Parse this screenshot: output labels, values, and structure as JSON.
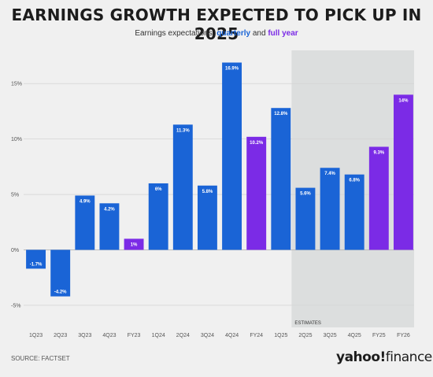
{
  "header": {
    "title": "EARNINGS GROWTH EXPECTED TO PICK UP IN 2025",
    "subtitle_prefix": "Earnings expectations, ",
    "subtitle_quarterly": "quarterly",
    "subtitle_and": " and ",
    "subtitle_fullyear": "full year"
  },
  "footer": {
    "source": "SOURCE: FACTSET",
    "logo_main": "yahoo",
    "logo_bang": "!",
    "logo_sub": "finance"
  },
  "colors": {
    "quarterly": "#1a64d6",
    "full_year": "#7b2be6",
    "estimates_shade": "#dcdede",
    "background": "#f0f0f0"
  },
  "chart_data": {
    "type": "bar",
    "categories": [
      "1Q23",
      "2Q23",
      "3Q23",
      "4Q23",
      "FY23",
      "1Q24",
      "2Q24",
      "3Q24",
      "4Q24",
      "FY24",
      "1Q25",
      "2Q25",
      "3Q25",
      "4Q25",
      "FY25",
      "FY26"
    ],
    "values": [
      -1.7,
      -4.2,
      4.9,
      4.2,
      1,
      6,
      11.3,
      5.8,
      16.9,
      10.2,
      12.8,
      5.6,
      7.4,
      6.8,
      9.3,
      14
    ],
    "labels": [
      "-1.7%",
      "-4.2%",
      "4.9%",
      "4.2%",
      "1%",
      "6%",
      "11.3%",
      "5.8%",
      "16.9%",
      "10.2%",
      "12.8%",
      "5.6%",
      "7.4%",
      "6.8%",
      "9.3%",
      "14%"
    ],
    "kinds": [
      "quarterly",
      "quarterly",
      "quarterly",
      "quarterly",
      "full_year",
      "quarterly",
      "quarterly",
      "quarterly",
      "quarterly",
      "full_year",
      "quarterly",
      "quarterly",
      "quarterly",
      "quarterly",
      "full_year",
      "full_year"
    ],
    "ylim": [
      -7,
      18
    ],
    "yticks": [
      -5,
      0,
      5,
      10,
      15
    ],
    "ytick_labels": [
      "-5%",
      "0%",
      "5%",
      "10%",
      "15%"
    ],
    "estimates_label": "ESTIMATES",
    "estimates_start_index": 11,
    "grid": true
  }
}
